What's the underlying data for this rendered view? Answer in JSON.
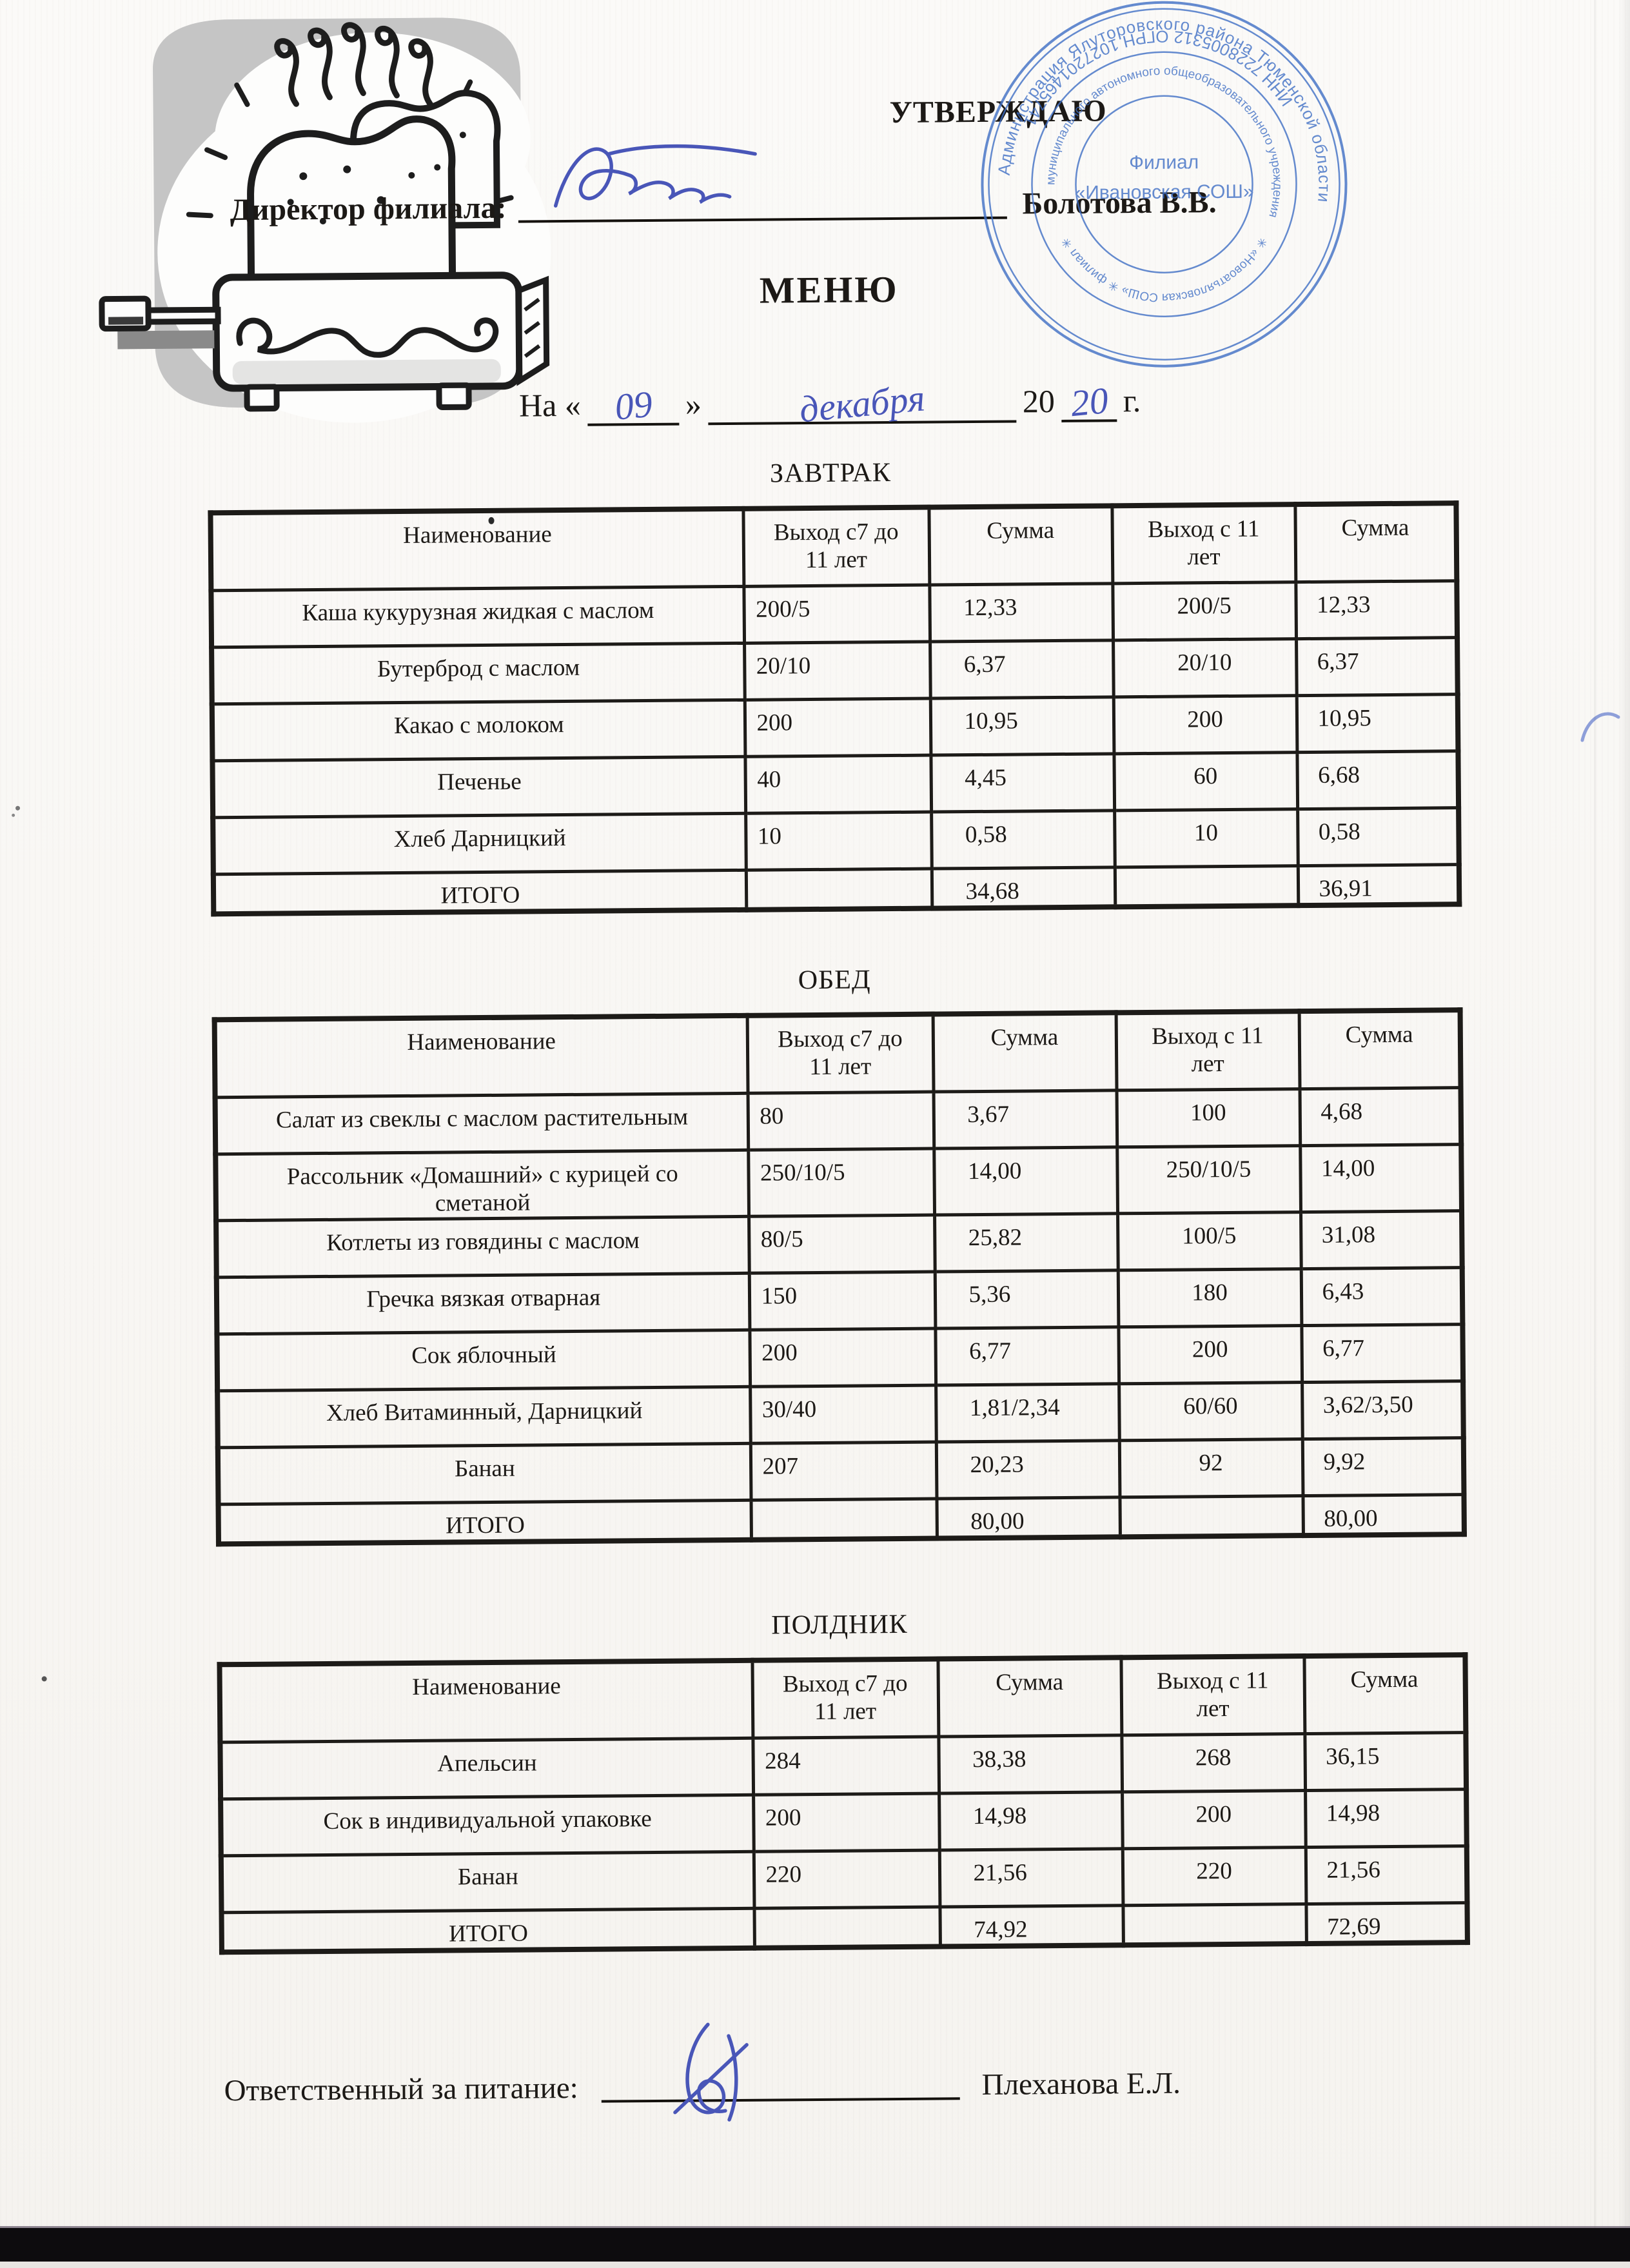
{
  "header": {
    "approve": "УТВЕРЖДАЮ",
    "director_label": "Директор филиала:",
    "director_name": "Болотова В.В."
  },
  "title": "МЕНЮ",
  "date": {
    "prefix": "На «",
    "day": "09",
    "close_quote": "»",
    "month": "декабря",
    "year_printed": "20",
    "year_hand": "20",
    "suffix": "г."
  },
  "stamp": {
    "band1_top": "Администрация Ялуторовского района Тюменской области",
    "band1_bottom": "ИНН 7228005312  ОГРН 1027201465741",
    "band2_top": "муниципального автономного общеобразовательного учреждения",
    "band2_bottom": "✳ «Новоатьяловская СОШ» ✳ филиал ✳",
    "center_line1": "Филиал",
    "center_line2": "«Ивановская СОШ»",
    "color": "#3f6fc5"
  },
  "table_columns": [
    "Наименование",
    "Выход с7 до\n11 лет",
    "Сумма",
    "Выход с 11\nлет",
    "Сумма"
  ],
  "sections": [
    {
      "title": "ЗАВТРАК",
      "rows": [
        [
          "Каша кукурузная жидкая с маслом",
          "200/5",
          "12,33",
          "200/5",
          "12,33"
        ],
        [
          "Бутерброд с маслом",
          "20/10",
          "6,37",
          "20/10",
          "6,37"
        ],
        [
          "Какао с молоком",
          "200",
          "10,95",
          "200",
          "10,95"
        ],
        [
          "Печенье",
          "40",
          "4,45",
          "60",
          "6,68"
        ],
        [
          "Хлеб Дарницкий",
          "10",
          "0,58",
          "10",
          "0,58"
        ],
        [
          "ИТОГО",
          "",
          "34,68",
          "",
          "36,91"
        ]
      ]
    },
    {
      "title": "ОБЕД",
      "rows": [
        [
          "Салат из свеклы с маслом растительным",
          "80",
          "3,67",
          "100",
          "4,68"
        ],
        [
          "Рассольник «Домашний» с курицей со сметаной",
          "250/10/5",
          "14,00",
          "250/10/5",
          "14,00"
        ],
        [
          "Котлеты из говядины с маслом",
          "80/5",
          "25,82",
          "100/5",
          "31,08"
        ],
        [
          "Гречка вязкая отварная",
          "150",
          "5,36",
          "180",
          "6,43"
        ],
        [
          "Сок яблочный",
          "200",
          "6,77",
          "200",
          "6,77"
        ],
        [
          "Хлеб Витаминный, Дарницкий",
          "30/40",
          "1,81/2,34",
          "60/60",
          "3,62/3,50"
        ],
        [
          "Банан",
          "207",
          "20,23",
          "92",
          "9,92"
        ],
        [
          "ИТОГО",
          "",
          "80,00",
          "",
          "80,00"
        ]
      ]
    },
    {
      "title": "ПОЛДНИК",
      "rows": [
        [
          "Апельсин",
          "284",
          "38,38",
          "268",
          "36,15"
        ],
        [
          "Сок в индивидуальной упаковке",
          "200",
          "14,98",
          "200",
          "14,98"
        ],
        [
          "Банан",
          "220",
          "21,56",
          "220",
          "21,56"
        ],
        [
          "ИТОГО",
          "",
          "74,92",
          "",
          "72,69"
        ]
      ]
    }
  ],
  "footer": {
    "label": "Ответственный за питание:",
    "name": "Плеханова Е.Л."
  },
  "ink": {
    "stamp_blue": "#3f6fc5",
    "pen_blue": "#4956b8"
  }
}
